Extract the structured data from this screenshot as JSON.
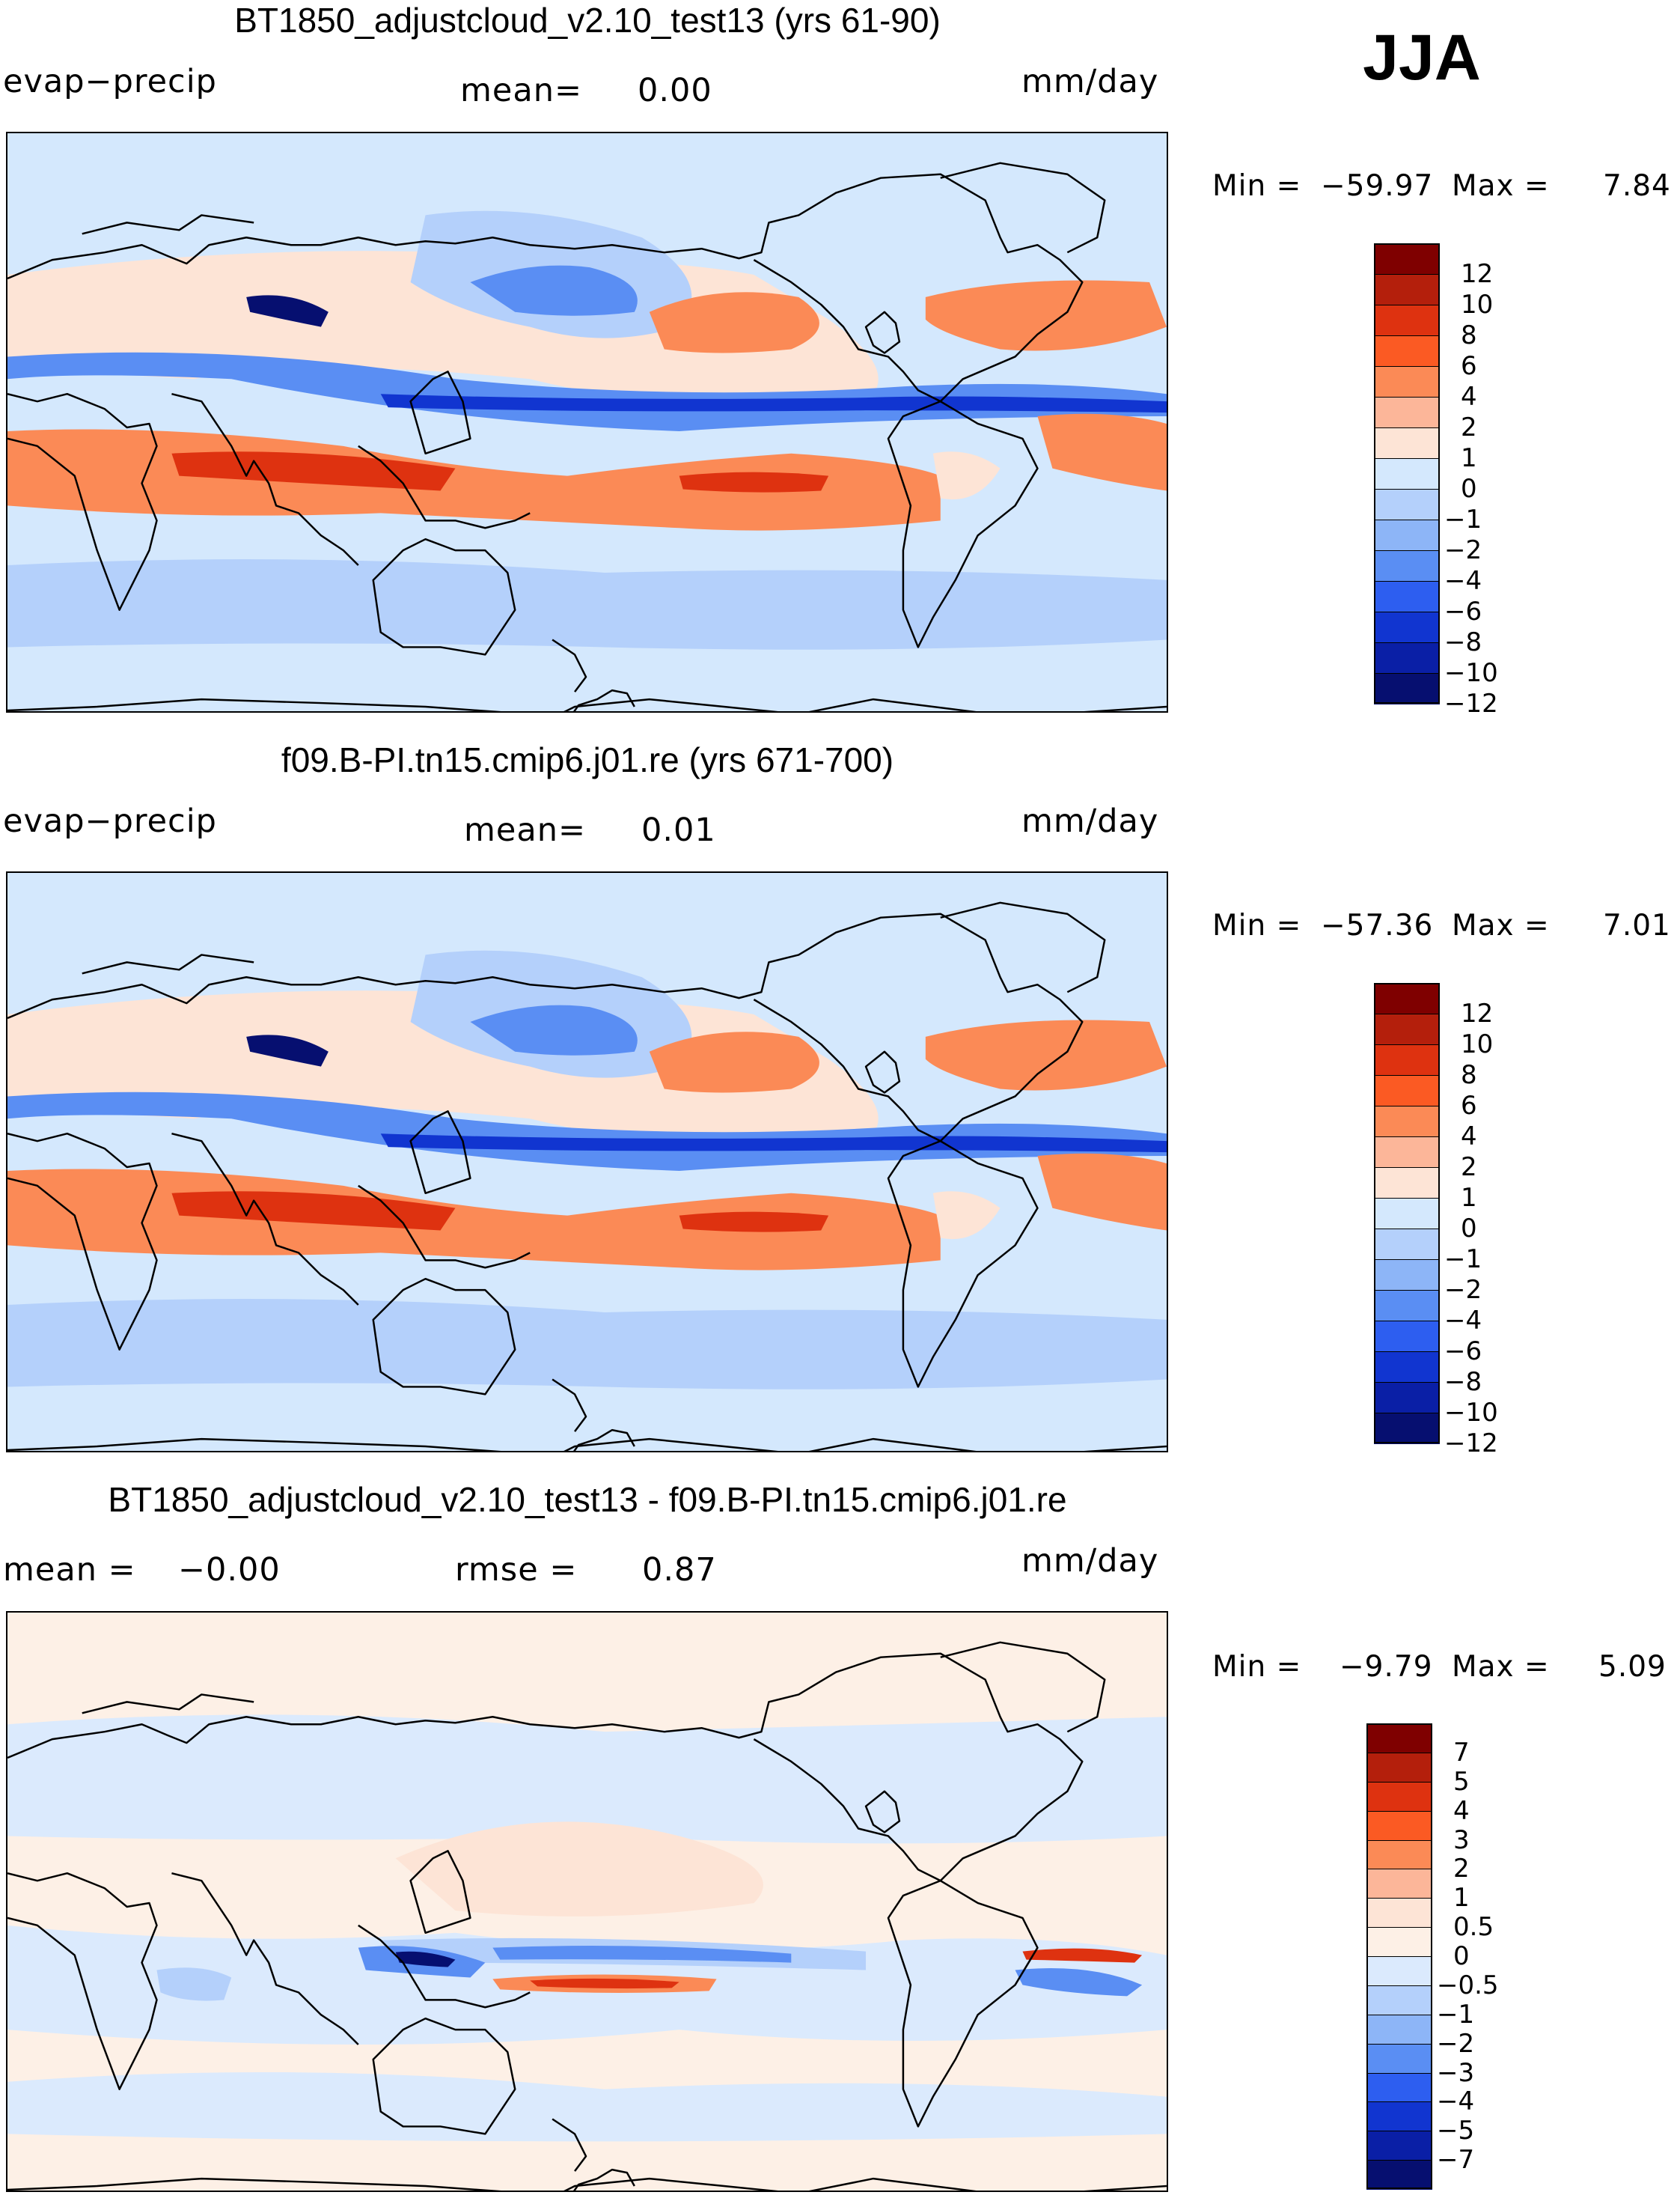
{
  "season": "JJA",
  "panels": [
    {
      "title": "BT1850_adjustcloud_v2.10_test13 (yrs 61-90)",
      "left_label": "evap−precip",
      "center_key": "mean=",
      "center_val": "0.00",
      "units": "mm/day",
      "min_key": "Min  =",
      "min_val": "−59.97",
      "max_key": "Max  =",
      "max_val": "7.84",
      "colorbar": {
        "colors": [
          "#7f0000",
          "#b41f0c",
          "#de3210",
          "#fb5a23",
          "#fb8a56",
          "#fcb699",
          "#fde4d6",
          "#d4e8fd",
          "#b4d0fb",
          "#8db5f7",
          "#5a8ef3",
          "#2d5ef0",
          "#1135d0",
          "#0a1fa6",
          "#060f70"
        ],
        "labels": [
          "12",
          "10",
          "8",
          "6",
          "4",
          "2",
          "1",
          "0",
          "−1",
          "−2",
          "−4",
          "−6",
          "−8",
          "−10",
          "−12"
        ]
      }
    },
    {
      "title": "f09.B-PI.tn15.cmip6.j01.re (yrs 671-700)",
      "left_label": "evap−precip",
      "center_key": "mean=",
      "center_val": "0.01",
      "units": "mm/day",
      "min_key": "Min  =",
      "min_val": "−57.36",
      "max_key": "Max  =",
      "max_val": "7.01",
      "colorbar": {
        "colors": [
          "#7f0000",
          "#b41f0c",
          "#de3210",
          "#fb5a23",
          "#fb8a56",
          "#fcb699",
          "#fde4d6",
          "#d4e8fd",
          "#b4d0fb",
          "#8db5f7",
          "#5a8ef3",
          "#2d5ef0",
          "#1135d0",
          "#0a1fa6",
          "#060f70"
        ],
        "labels": [
          "12",
          "10",
          "8",
          "6",
          "4",
          "2",
          "1",
          "0",
          "−1",
          "−2",
          "−4",
          "−6",
          "−8",
          "−10",
          "−12"
        ]
      }
    },
    {
      "title": "BT1850_adjustcloud_v2.10_test13 - f09.B-PI.tn15.cmip6.j01.re",
      "left_label": "mean  =",
      "left_val": "−0.00",
      "center_key": "rmse  =",
      "center_val": "0.87",
      "units": "mm/day",
      "min_key": "Min  =",
      "min_val": "−9.79",
      "max_key": "Max  =",
      "max_val": "5.09",
      "colorbar": {
        "colors": [
          "#7f0000",
          "#b41f0c",
          "#de3210",
          "#fb5a23",
          "#fb8a56",
          "#fcb699",
          "#fde4d6",
          "#fdf0e6",
          "#dbeafd",
          "#b4d0fb",
          "#8db5f7",
          "#5a8ef3",
          "#2d5ef0",
          "#1135d0",
          "#0a1fa6",
          "#060f70"
        ],
        "labels": [
          "7",
          "5",
          "4",
          "3",
          "2",
          "1",
          "0.5",
          "0",
          "−0.5",
          "−1",
          "−2",
          "−3",
          "−4",
          "−5",
          "−7"
        ]
      }
    }
  ],
  "map_colors": {
    "ocean": "#d4e8fd",
    "light_red": "#fde4d6",
    "red": "#fb8a56",
    "dark_red": "#de3210",
    "light_blue": "#b4d0fb",
    "blue": "#5a8ef3",
    "dark_blue": "#1135d0",
    "navy": "#060f70",
    "diff_bg": "#fdf0e6"
  }
}
